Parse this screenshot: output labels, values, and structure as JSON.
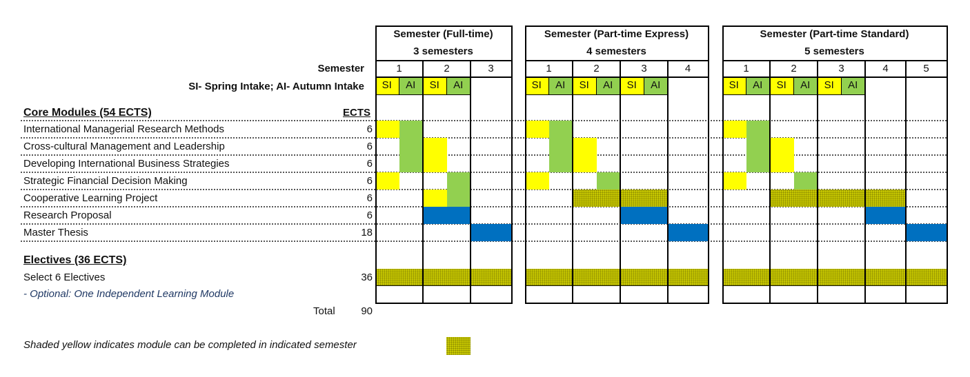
{
  "row_labels": {
    "semester": "Semester",
    "intake": "SI- Spring Intake; AI- Autumn Intake"
  },
  "core": {
    "heading": "Core Modules (54 ECTS)",
    "ects_header": "ECTS",
    "modules": [
      {
        "name": "International Managerial Research Methods",
        "ects": "6"
      },
      {
        "name": "Cross-cultural Management and Leadership",
        "ects": "6"
      },
      {
        "name": "Developing International Business Strategies",
        "ects": "6"
      },
      {
        "name": "Strategic Financial Decision Making",
        "ects": "6"
      },
      {
        "name": "Cooperative Learning Project",
        "ects": "6"
      },
      {
        "name": "Research Proposal",
        "ects": "6"
      },
      {
        "name": "Master Thesis",
        "ects": "18"
      }
    ]
  },
  "electives": {
    "heading": "Electives (36 ECTS)",
    "name": "Select 6 Electives",
    "ects": "36",
    "optional": "- Optional: One Independent Learning Module"
  },
  "total": {
    "label": "Total",
    "value": "90"
  },
  "legend": {
    "text": "Shaded yellow indicates module can be completed in indicated semester"
  },
  "intake_labels": {
    "si": "SI",
    "ai": "AI"
  },
  "colors": {
    "spring": "#ffff00",
    "autumn": "#92d050",
    "fixed": "#0070c0",
    "flexible": "#c8c800"
  },
  "programs": [
    {
      "title": "Semester (Full-time)",
      "subtitle": "3 semesters",
      "semesters": [
        "1",
        "2",
        "3"
      ],
      "intake_semesters": 2,
      "schedule": [
        [
          [
            0,
            0,
            "Y"
          ],
          [
            1,
            1,
            "G"
          ]
        ],
        [
          [
            1,
            1,
            "G"
          ],
          [
            2,
            2,
            "Y"
          ]
        ],
        [
          [
            1,
            1,
            "G"
          ],
          [
            2,
            2,
            "Y"
          ]
        ],
        [
          [
            0,
            0,
            "Y"
          ],
          [
            3,
            3,
            "G"
          ]
        ],
        [
          [
            2,
            2,
            "Y"
          ],
          [
            3,
            3,
            "G"
          ]
        ],
        [
          [
            2,
            3,
            "B"
          ]
        ],
        [
          [
            4,
            5,
            "B"
          ]
        ]
      ],
      "electives": [
        [
          0,
          5,
          "H"
        ]
      ]
    },
    {
      "title": "Semester (Part-time Express)",
      "subtitle": "4 semesters",
      "semesters": [
        "1",
        "2",
        "3",
        "4"
      ],
      "intake_semesters": 3,
      "schedule": [
        [
          [
            0,
            0,
            "Y"
          ],
          [
            1,
            1,
            "G"
          ]
        ],
        [
          [
            1,
            1,
            "G"
          ],
          [
            2,
            2,
            "Y"
          ]
        ],
        [
          [
            1,
            1,
            "G"
          ],
          [
            2,
            2,
            "Y"
          ]
        ],
        [
          [
            0,
            0,
            "Y"
          ],
          [
            3,
            3,
            "G"
          ]
        ],
        [
          [
            2,
            5,
            "H"
          ]
        ],
        [
          [
            4,
            5,
            "B"
          ]
        ],
        [
          [
            6,
            7,
            "B"
          ]
        ]
      ],
      "electives": [
        [
          0,
          7,
          "H"
        ]
      ]
    },
    {
      "title": "Semester (Part-time Standard)",
      "subtitle": "5 semesters",
      "semesters": [
        "1",
        "2",
        "3",
        "4",
        "5"
      ],
      "intake_semesters": 3,
      "schedule": [
        [
          [
            0,
            0,
            "Y"
          ],
          [
            1,
            1,
            "G"
          ]
        ],
        [
          [
            1,
            1,
            "G"
          ],
          [
            2,
            2,
            "Y"
          ]
        ],
        [
          [
            1,
            1,
            "G"
          ],
          [
            2,
            2,
            "Y"
          ]
        ],
        [
          [
            0,
            0,
            "Y"
          ],
          [
            3,
            3,
            "G"
          ]
        ],
        [
          [
            2,
            7,
            "H"
          ]
        ],
        [
          [
            6,
            7,
            "B"
          ]
        ],
        [
          [
            8,
            9,
            "B"
          ]
        ]
      ],
      "electives": [
        [
          0,
          9,
          "H"
        ]
      ]
    }
  ]
}
